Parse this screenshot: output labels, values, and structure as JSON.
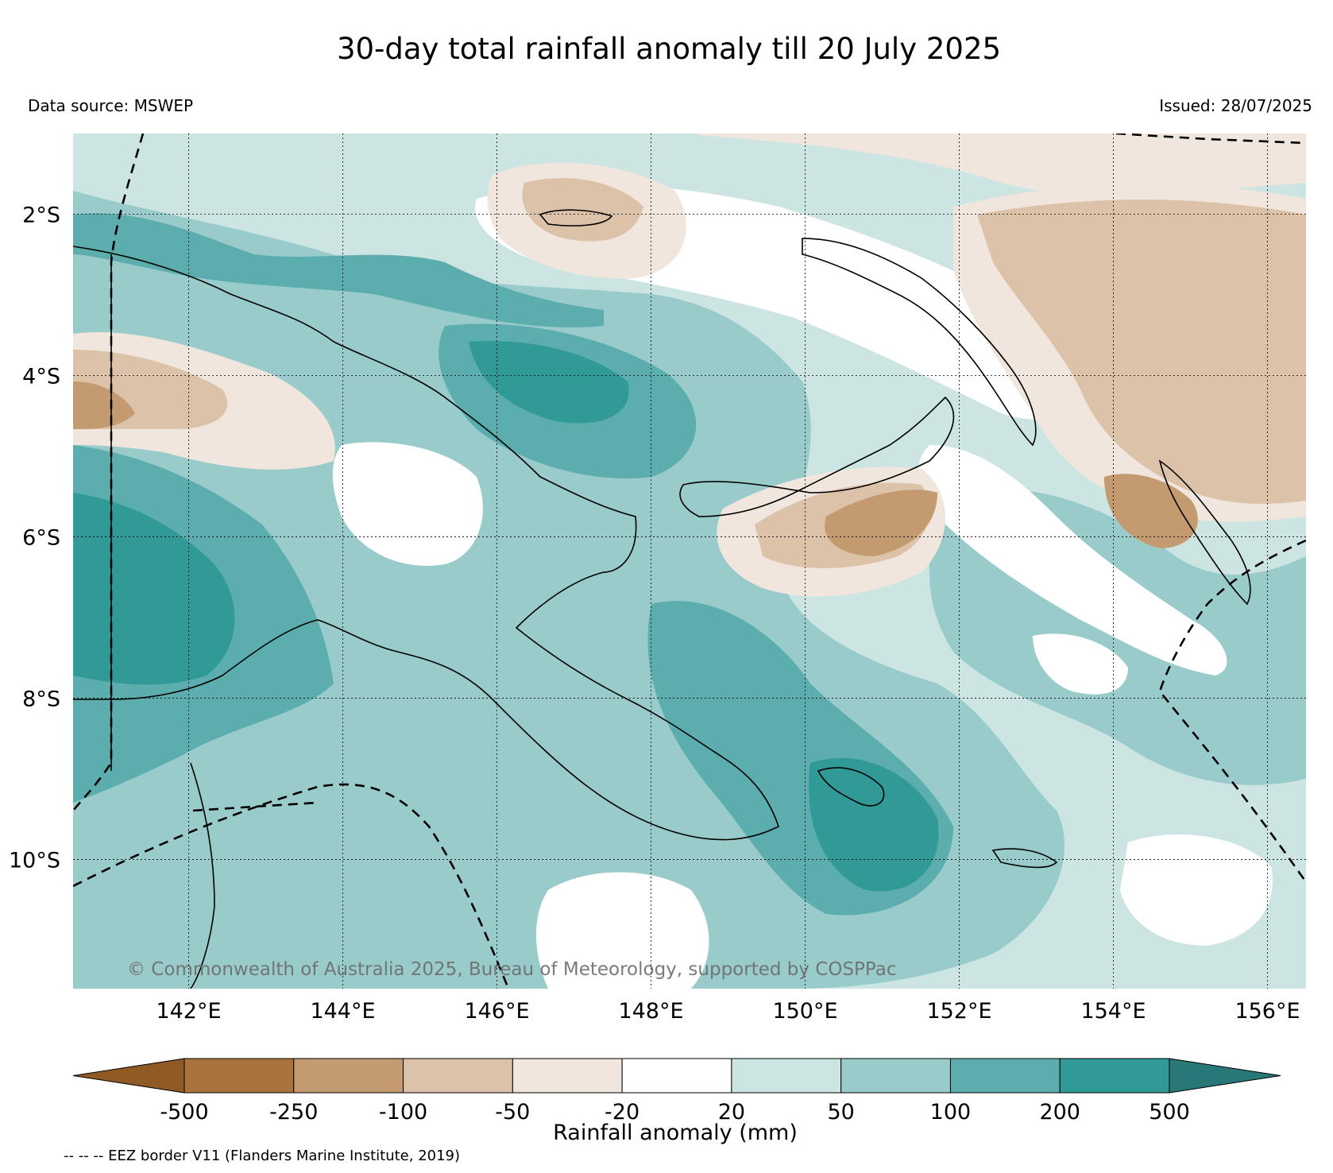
{
  "title": "30-day total rainfall anomaly till 20 July 2025",
  "data_source": "Data source: MSWEP",
  "issued": "Issued: 28/07/2025",
  "copyright": "© Commonwealth of Australia 2025, Bureau of Meteorology, supported by COSPPac",
  "eez_note": "-- -- -- EEZ border V11 (Flanders Marine Institute, 2019)",
  "map": {
    "lon_range": [
      140.5,
      156.5
    ],
    "lat_range": [
      -11.6,
      -1.0
    ],
    "lon_ticks": [
      "142°E",
      "144°E",
      "146°E",
      "148°E",
      "150°E",
      "152°E",
      "154°E",
      "156°E"
    ],
    "lat_ticks": [
      "2°S",
      "4°S",
      "6°S",
      "8°S",
      "10°S"
    ],
    "gridlines": true
  },
  "colorbar": {
    "label": "Rainfall anomaly (mm)",
    "tick_labels": [
      "-500",
      "-250",
      "-100",
      "-50",
      "-20",
      "20",
      "50",
      "100",
      "200",
      "500"
    ],
    "colors": [
      "#8f5a23",
      "#a8733c",
      "#c49a70",
      "#dcc2a8",
      "#f0e6dd",
      "#ffffff",
      "#cce5e3",
      "#99cbcb",
      "#5cadad",
      "#319a96",
      "#287877"
    ],
    "extend": "both"
  },
  "palette": {
    "wet_light": "#cce5e3",
    "wet_mid": "#99cbcb",
    "wet_strong": "#5cadad",
    "wet_max": "#319a96",
    "dry_light": "#f0e6dd",
    "dry_mid": "#dcc2a8",
    "dry_strong": "#c49a70"
  }
}
